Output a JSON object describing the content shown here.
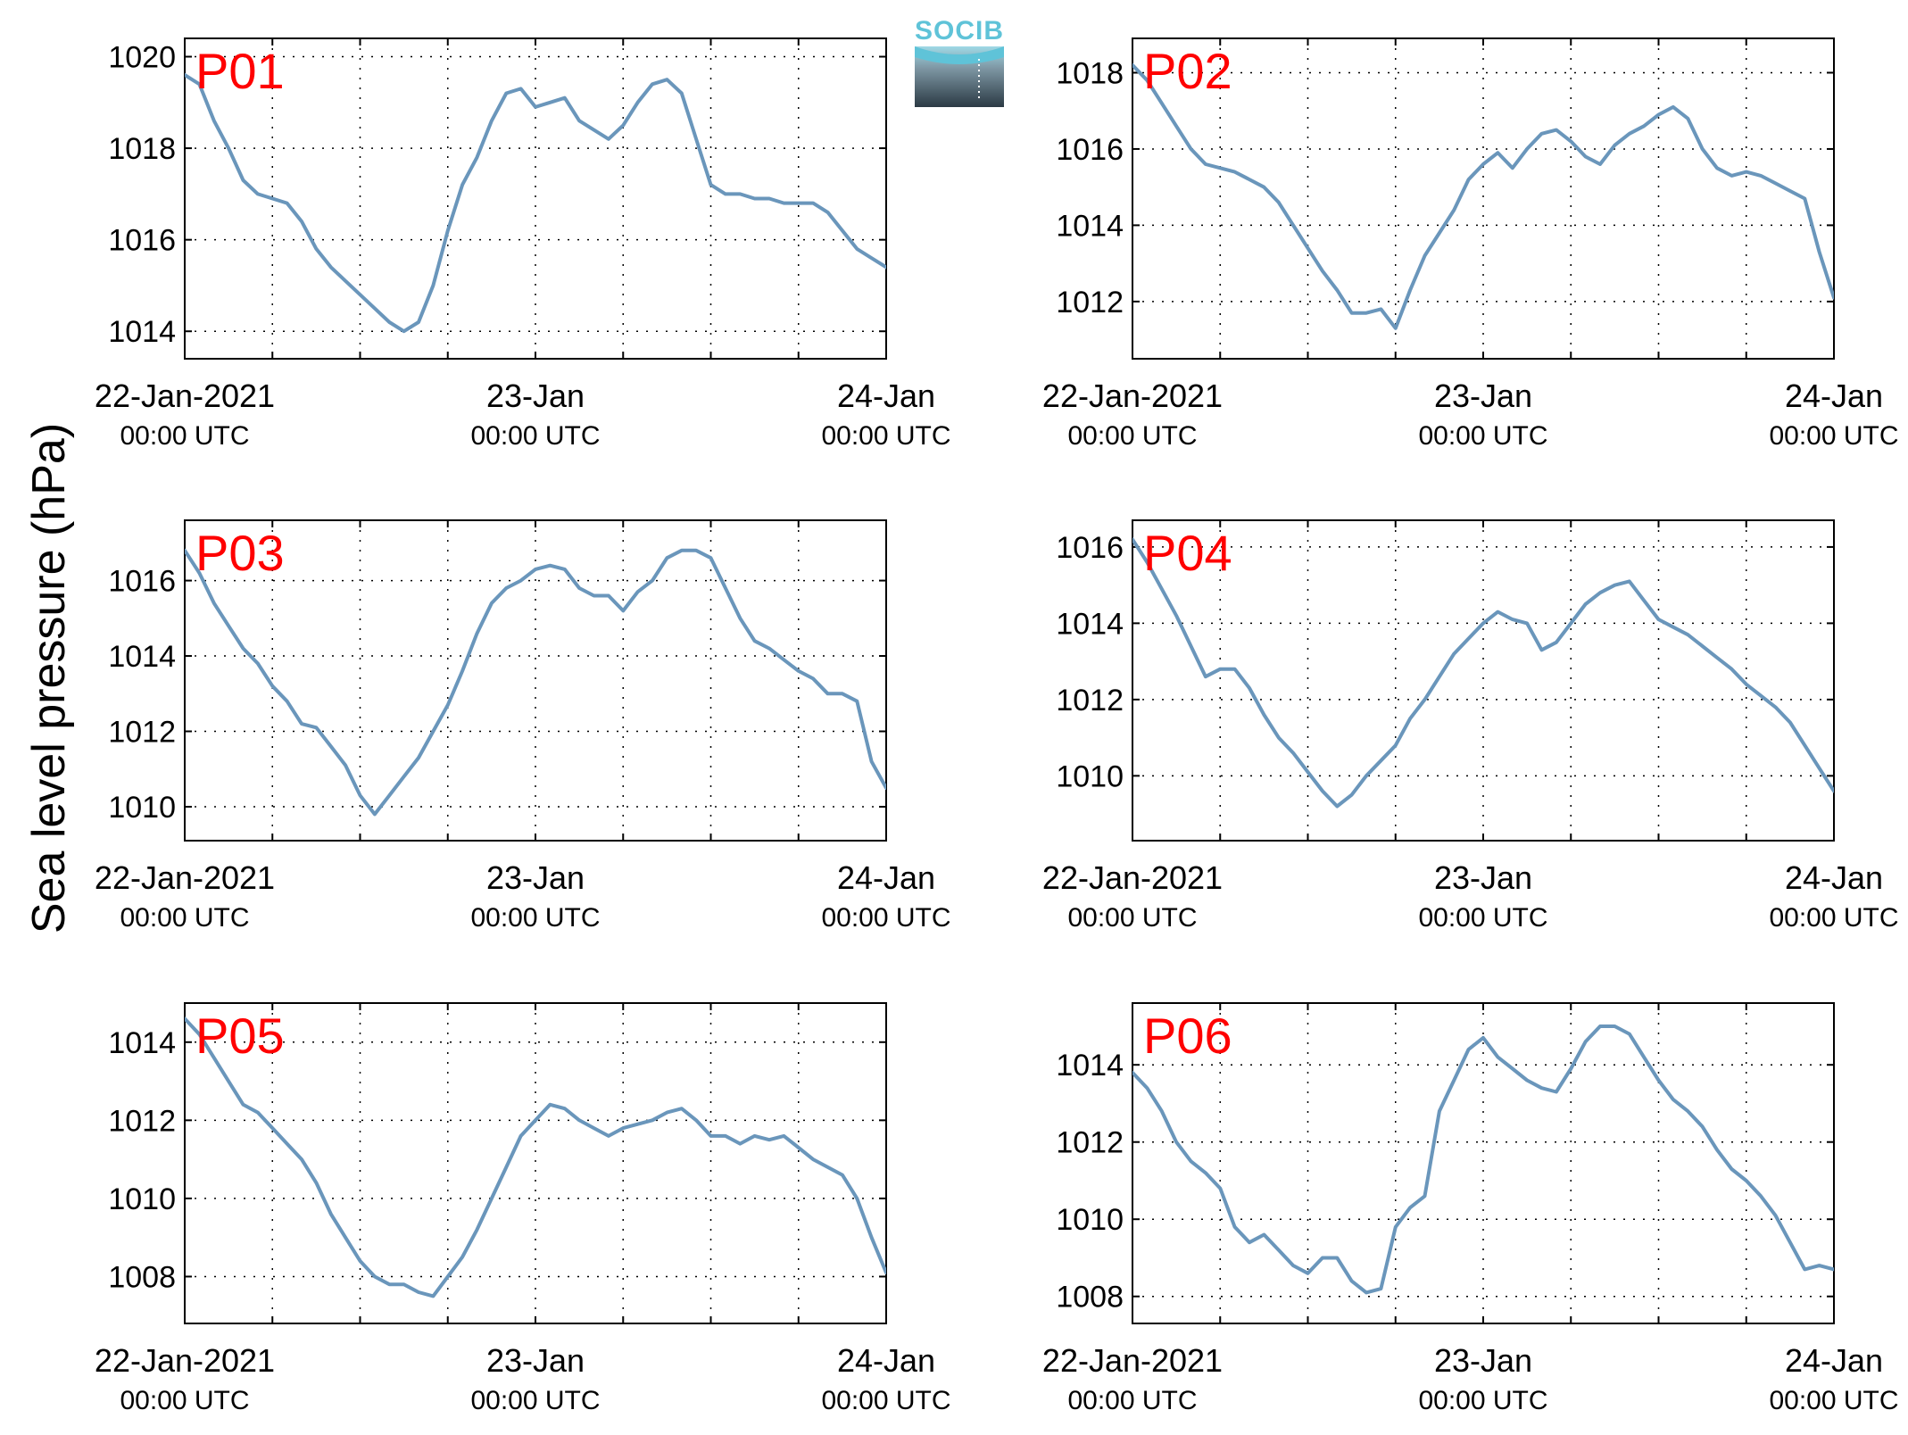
{
  "logo": {
    "text": "SOCIB",
    "icon": "socib-logo-icon",
    "color_top": "#5fc3d8",
    "color_bottom": "#2b3a44"
  },
  "chart_data": {
    "type": "line",
    "ylabel": "Sea level pressure (hPa)",
    "line_color": "#6a96bb",
    "grid": true,
    "x_range": [
      "22-Jan-2021 00:00 UTC",
      "24-Jan-2021 00:00 UTC"
    ],
    "x_ticks": [
      {
        "date": "22-Jan-2021",
        "time": "00:00 UTC"
      },
      {
        "date": "23-Jan",
        "time": "00:00 UTC"
      },
      {
        "date": "24-Jan",
        "time": "00:00 UTC"
      }
    ],
    "x_unit_hours": [
      0,
      48
    ],
    "panels": [
      {
        "name": "P01",
        "ylim": [
          1013.4,
          1020.4
        ],
        "yticks": [
          1014,
          1016,
          1018,
          1020
        ],
        "points": [
          [
            0,
            1019.6
          ],
          [
            1,
            1019.4
          ],
          [
            2,
            1018.6
          ],
          [
            3,
            1018.0
          ],
          [
            4,
            1017.3
          ],
          [
            5,
            1017.0
          ],
          [
            6,
            1016.9
          ],
          [
            7,
            1016.8
          ],
          [
            8,
            1016.4
          ],
          [
            9,
            1015.8
          ],
          [
            10,
            1015.4
          ],
          [
            11,
            1015.1
          ],
          [
            12,
            1014.8
          ],
          [
            13,
            1014.5
          ],
          [
            14,
            1014.2
          ],
          [
            15,
            1014.0
          ],
          [
            16,
            1014.2
          ],
          [
            17,
            1015.0
          ],
          [
            18,
            1016.2
          ],
          [
            19,
            1017.2
          ],
          [
            20,
            1017.8
          ],
          [
            21,
            1018.6
          ],
          [
            22,
            1019.2
          ],
          [
            23,
            1019.3
          ],
          [
            24,
            1018.9
          ],
          [
            25,
            1019.0
          ],
          [
            26,
            1019.1
          ],
          [
            27,
            1018.6
          ],
          [
            28,
            1018.4
          ],
          [
            29,
            1018.2
          ],
          [
            30,
            1018.5
          ],
          [
            31,
            1019.0
          ],
          [
            32,
            1019.4
          ],
          [
            33,
            1019.5
          ],
          [
            34,
            1019.2
          ],
          [
            35,
            1018.2
          ],
          [
            36,
            1017.2
          ],
          [
            37,
            1017.0
          ],
          [
            38,
            1017.0
          ],
          [
            39,
            1016.9
          ],
          [
            40,
            1016.9
          ],
          [
            41,
            1016.8
          ],
          [
            42,
            1016.8
          ],
          [
            43,
            1016.8
          ],
          [
            44,
            1016.6
          ],
          [
            45,
            1016.2
          ],
          [
            46,
            1015.8
          ],
          [
            47,
            1015.6
          ],
          [
            48,
            1015.4
          ]
        ]
      },
      {
        "name": "P02",
        "ylim": [
          1010.5,
          1018.9
        ],
        "yticks": [
          1012,
          1014,
          1016,
          1018
        ],
        "points": [
          [
            0,
            1018.2
          ],
          [
            1,
            1017.8
          ],
          [
            2,
            1017.2
          ],
          [
            3,
            1016.6
          ],
          [
            4,
            1016.0
          ],
          [
            5,
            1015.6
          ],
          [
            6,
            1015.5
          ],
          [
            7,
            1015.4
          ],
          [
            8,
            1015.2
          ],
          [
            9,
            1015.0
          ],
          [
            10,
            1014.6
          ],
          [
            11,
            1014.0
          ],
          [
            12,
            1013.4
          ],
          [
            13,
            1012.8
          ],
          [
            14,
            1012.3
          ],
          [
            15,
            1011.7
          ],
          [
            16,
            1011.7
          ],
          [
            17,
            1011.8
          ],
          [
            18,
            1011.3
          ],
          [
            19,
            1012.3
          ],
          [
            20,
            1013.2
          ],
          [
            21,
            1013.8
          ],
          [
            22,
            1014.4
          ],
          [
            23,
            1015.2
          ],
          [
            24,
            1015.6
          ],
          [
            25,
            1015.9
          ],
          [
            26,
            1015.5
          ],
          [
            27,
            1016.0
          ],
          [
            28,
            1016.4
          ],
          [
            29,
            1016.5
          ],
          [
            30,
            1016.2
          ],
          [
            31,
            1015.8
          ],
          [
            32,
            1015.6
          ],
          [
            33,
            1016.1
          ],
          [
            34,
            1016.4
          ],
          [
            35,
            1016.6
          ],
          [
            36,
            1016.9
          ],
          [
            37,
            1017.1
          ],
          [
            38,
            1016.8
          ],
          [
            39,
            1016.0
          ],
          [
            40,
            1015.5
          ],
          [
            41,
            1015.3
          ],
          [
            42,
            1015.4
          ],
          [
            43,
            1015.3
          ],
          [
            44,
            1015.1
          ],
          [
            45,
            1014.9
          ],
          [
            46,
            1014.7
          ],
          [
            47,
            1013.3
          ],
          [
            48,
            1012.1
          ]
        ]
      },
      {
        "name": "P03",
        "ylim": [
          1009.1,
          1017.6
        ],
        "yticks": [
          1010,
          1012,
          1014,
          1016
        ],
        "points": [
          [
            0,
            1016.8
          ],
          [
            1,
            1016.2
          ],
          [
            2,
            1015.4
          ],
          [
            3,
            1014.8
          ],
          [
            4,
            1014.2
          ],
          [
            5,
            1013.8
          ],
          [
            6,
            1013.2
          ],
          [
            7,
            1012.8
          ],
          [
            8,
            1012.2
          ],
          [
            9,
            1012.1
          ],
          [
            10,
            1011.6
          ],
          [
            11,
            1011.1
          ],
          [
            12,
            1010.3
          ],
          [
            13,
            1009.8
          ],
          [
            14,
            1010.3
          ],
          [
            15,
            1010.8
          ],
          [
            16,
            1011.3
          ],
          [
            17,
            1012.0
          ],
          [
            18,
            1012.7
          ],
          [
            19,
            1013.6
          ],
          [
            20,
            1014.6
          ],
          [
            21,
            1015.4
          ],
          [
            22,
            1015.8
          ],
          [
            23,
            1016.0
          ],
          [
            24,
            1016.3
          ],
          [
            25,
            1016.4
          ],
          [
            26,
            1016.3
          ],
          [
            27,
            1015.8
          ],
          [
            28,
            1015.6
          ],
          [
            29,
            1015.6
          ],
          [
            30,
            1015.2
          ],
          [
            31,
            1015.7
          ],
          [
            32,
            1016.0
          ],
          [
            33,
            1016.6
          ],
          [
            34,
            1016.8
          ],
          [
            35,
            1016.8
          ],
          [
            36,
            1016.6
          ],
          [
            37,
            1015.8
          ],
          [
            38,
            1015.0
          ],
          [
            39,
            1014.4
          ],
          [
            40,
            1014.2
          ],
          [
            41,
            1013.9
          ],
          [
            42,
            1013.6
          ],
          [
            43,
            1013.4
          ],
          [
            44,
            1013.0
          ],
          [
            45,
            1013.0
          ],
          [
            46,
            1012.8
          ],
          [
            47,
            1011.2
          ],
          [
            48,
            1010.5
          ]
        ]
      },
      {
        "name": "P04",
        "ylim": [
          1008.3,
          1016.7
        ],
        "yticks": [
          1010,
          1012,
          1014,
          1016
        ],
        "points": [
          [
            0,
            1016.2
          ],
          [
            1,
            1015.6
          ],
          [
            2,
            1014.9
          ],
          [
            3,
            1014.2
          ],
          [
            4,
            1013.4
          ],
          [
            5,
            1012.6
          ],
          [
            6,
            1012.8
          ],
          [
            7,
            1012.8
          ],
          [
            8,
            1012.3
          ],
          [
            9,
            1011.6
          ],
          [
            10,
            1011.0
          ],
          [
            11,
            1010.6
          ],
          [
            12,
            1010.1
          ],
          [
            13,
            1009.6
          ],
          [
            14,
            1009.2
          ],
          [
            15,
            1009.5
          ],
          [
            16,
            1010.0
          ],
          [
            17,
            1010.4
          ],
          [
            18,
            1010.8
          ],
          [
            19,
            1011.5
          ],
          [
            20,
            1012.0
          ],
          [
            21,
            1012.6
          ],
          [
            22,
            1013.2
          ],
          [
            23,
            1013.6
          ],
          [
            24,
            1014.0
          ],
          [
            25,
            1014.3
          ],
          [
            26,
            1014.1
          ],
          [
            27,
            1014.0
          ],
          [
            28,
            1013.3
          ],
          [
            29,
            1013.5
          ],
          [
            30,
            1014.0
          ],
          [
            31,
            1014.5
          ],
          [
            32,
            1014.8
          ],
          [
            33,
            1015.0
          ],
          [
            34,
            1015.1
          ],
          [
            35,
            1014.6
          ],
          [
            36,
            1014.1
          ],
          [
            37,
            1013.9
          ],
          [
            38,
            1013.7
          ],
          [
            39,
            1013.4
          ],
          [
            40,
            1013.1
          ],
          [
            41,
            1012.8
          ],
          [
            42,
            1012.4
          ],
          [
            43,
            1012.1
          ],
          [
            44,
            1011.8
          ],
          [
            45,
            1011.4
          ],
          [
            46,
            1010.8
          ],
          [
            47,
            1010.2
          ],
          [
            48,
            1009.6
          ]
        ]
      },
      {
        "name": "P05",
        "ylim": [
          1006.8,
          1015.0
        ],
        "yticks": [
          1008,
          1010,
          1012,
          1014
        ],
        "points": [
          [
            0,
            1014.6
          ],
          [
            1,
            1014.2
          ],
          [
            2,
            1013.6
          ],
          [
            3,
            1013.0
          ],
          [
            4,
            1012.4
          ],
          [
            5,
            1012.2
          ],
          [
            6,
            1011.8
          ],
          [
            7,
            1011.4
          ],
          [
            8,
            1011.0
          ],
          [
            9,
            1010.4
          ],
          [
            10,
            1009.6
          ],
          [
            11,
            1009.0
          ],
          [
            12,
            1008.4
          ],
          [
            13,
            1008.0
          ],
          [
            14,
            1007.8
          ],
          [
            15,
            1007.8
          ],
          [
            16,
            1007.6
          ],
          [
            17,
            1007.5
          ],
          [
            18,
            1008.0
          ],
          [
            19,
            1008.5
          ],
          [
            20,
            1009.2
          ],
          [
            21,
            1010.0
          ],
          [
            22,
            1010.8
          ],
          [
            23,
            1011.6
          ],
          [
            24,
            1012.0
          ],
          [
            25,
            1012.4
          ],
          [
            26,
            1012.3
          ],
          [
            27,
            1012.0
          ],
          [
            28,
            1011.8
          ],
          [
            29,
            1011.6
          ],
          [
            30,
            1011.8
          ],
          [
            31,
            1011.9
          ],
          [
            32,
            1012.0
          ],
          [
            33,
            1012.2
          ],
          [
            34,
            1012.3
          ],
          [
            35,
            1012.0
          ],
          [
            36,
            1011.6
          ],
          [
            37,
            1011.6
          ],
          [
            38,
            1011.4
          ],
          [
            39,
            1011.6
          ],
          [
            40,
            1011.5
          ],
          [
            41,
            1011.6
          ],
          [
            42,
            1011.3
          ],
          [
            43,
            1011.0
          ],
          [
            44,
            1010.8
          ],
          [
            45,
            1010.6
          ],
          [
            46,
            1010.0
          ],
          [
            47,
            1009.0
          ],
          [
            48,
            1008.1
          ]
        ]
      },
      {
        "name": "P06",
        "ylim": [
          1007.3,
          1015.6
        ],
        "yticks": [
          1008,
          1010,
          1012,
          1014
        ],
        "points": [
          [
            0,
            1013.8
          ],
          [
            1,
            1013.4
          ],
          [
            2,
            1012.8
          ],
          [
            3,
            1012.0
          ],
          [
            4,
            1011.5
          ],
          [
            5,
            1011.2
          ],
          [
            6,
            1010.8
          ],
          [
            7,
            1009.8
          ],
          [
            8,
            1009.4
          ],
          [
            9,
            1009.6
          ],
          [
            10,
            1009.2
          ],
          [
            11,
            1008.8
          ],
          [
            12,
            1008.6
          ],
          [
            13,
            1009.0
          ],
          [
            14,
            1009.0
          ],
          [
            15,
            1008.4
          ],
          [
            16,
            1008.1
          ],
          [
            17,
            1008.2
          ],
          [
            18,
            1009.8
          ],
          [
            19,
            1010.3
          ],
          [
            20,
            1010.6
          ],
          [
            21,
            1012.8
          ],
          [
            22,
            1013.6
          ],
          [
            23,
            1014.4
          ],
          [
            24,
            1014.7
          ],
          [
            25,
            1014.2
          ],
          [
            26,
            1013.9
          ],
          [
            27,
            1013.6
          ],
          [
            28,
            1013.4
          ],
          [
            29,
            1013.3
          ],
          [
            30,
            1013.9
          ],
          [
            31,
            1014.6
          ],
          [
            32,
            1015.0
          ],
          [
            33,
            1015.0
          ],
          [
            34,
            1014.8
          ],
          [
            35,
            1014.2
          ],
          [
            36,
            1013.6
          ],
          [
            37,
            1013.1
          ],
          [
            38,
            1012.8
          ],
          [
            39,
            1012.4
          ],
          [
            40,
            1011.8
          ],
          [
            41,
            1011.3
          ],
          [
            42,
            1011.0
          ],
          [
            43,
            1010.6
          ],
          [
            44,
            1010.1
          ],
          [
            45,
            1009.4
          ],
          [
            46,
            1008.7
          ],
          [
            47,
            1008.8
          ],
          [
            48,
            1008.7
          ]
        ]
      }
    ]
  }
}
